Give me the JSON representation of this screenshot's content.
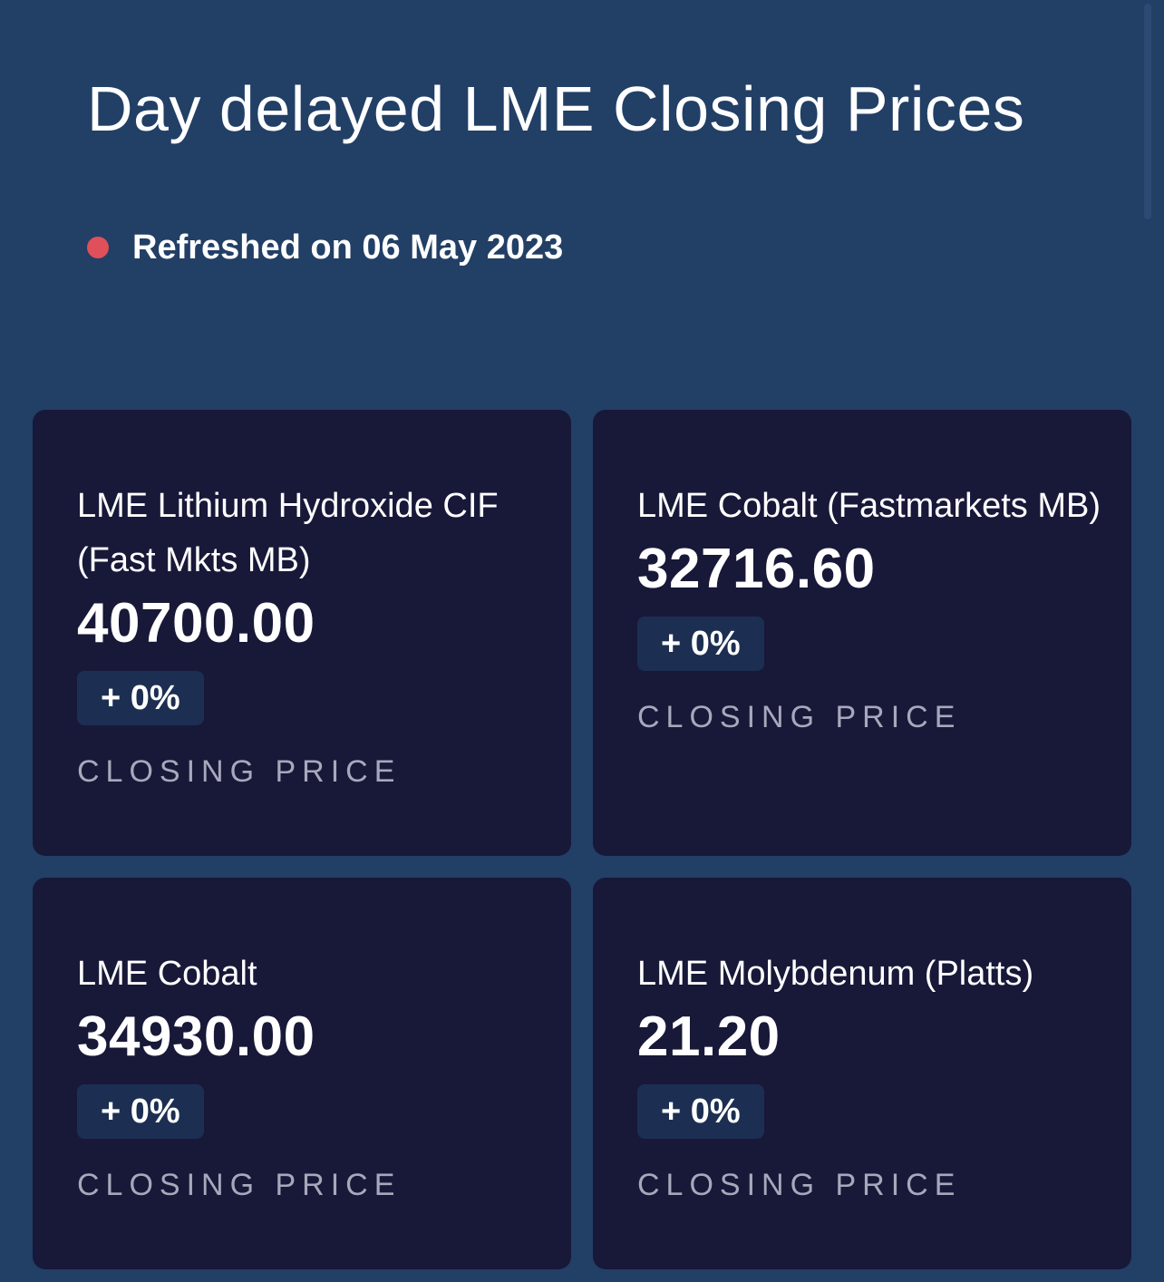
{
  "header": {
    "title": "Day delayed LME Closing Prices",
    "refreshed": "Refreshed on 06 May 2023",
    "status_color": "#e0505a"
  },
  "cards": [
    {
      "name": "LME Lithium Hydroxide CIF (Fast Mkts MB)",
      "price": "40700.00",
      "change": "+ 0%",
      "label": "CLOSING PRICE"
    },
    {
      "name": "LME Cobalt (Fastmarkets MB)",
      "price": "32716.60",
      "change": "+ 0%",
      "label": "CLOSING PRICE"
    },
    {
      "name": "LME Cobalt",
      "price": "34930.00",
      "change": "+ 0%",
      "label": "CLOSING PRICE"
    },
    {
      "name": "LME Molybdenum (Platts)",
      "price": "21.20",
      "change": "+ 0%",
      "label": "CLOSING PRICE"
    }
  ]
}
